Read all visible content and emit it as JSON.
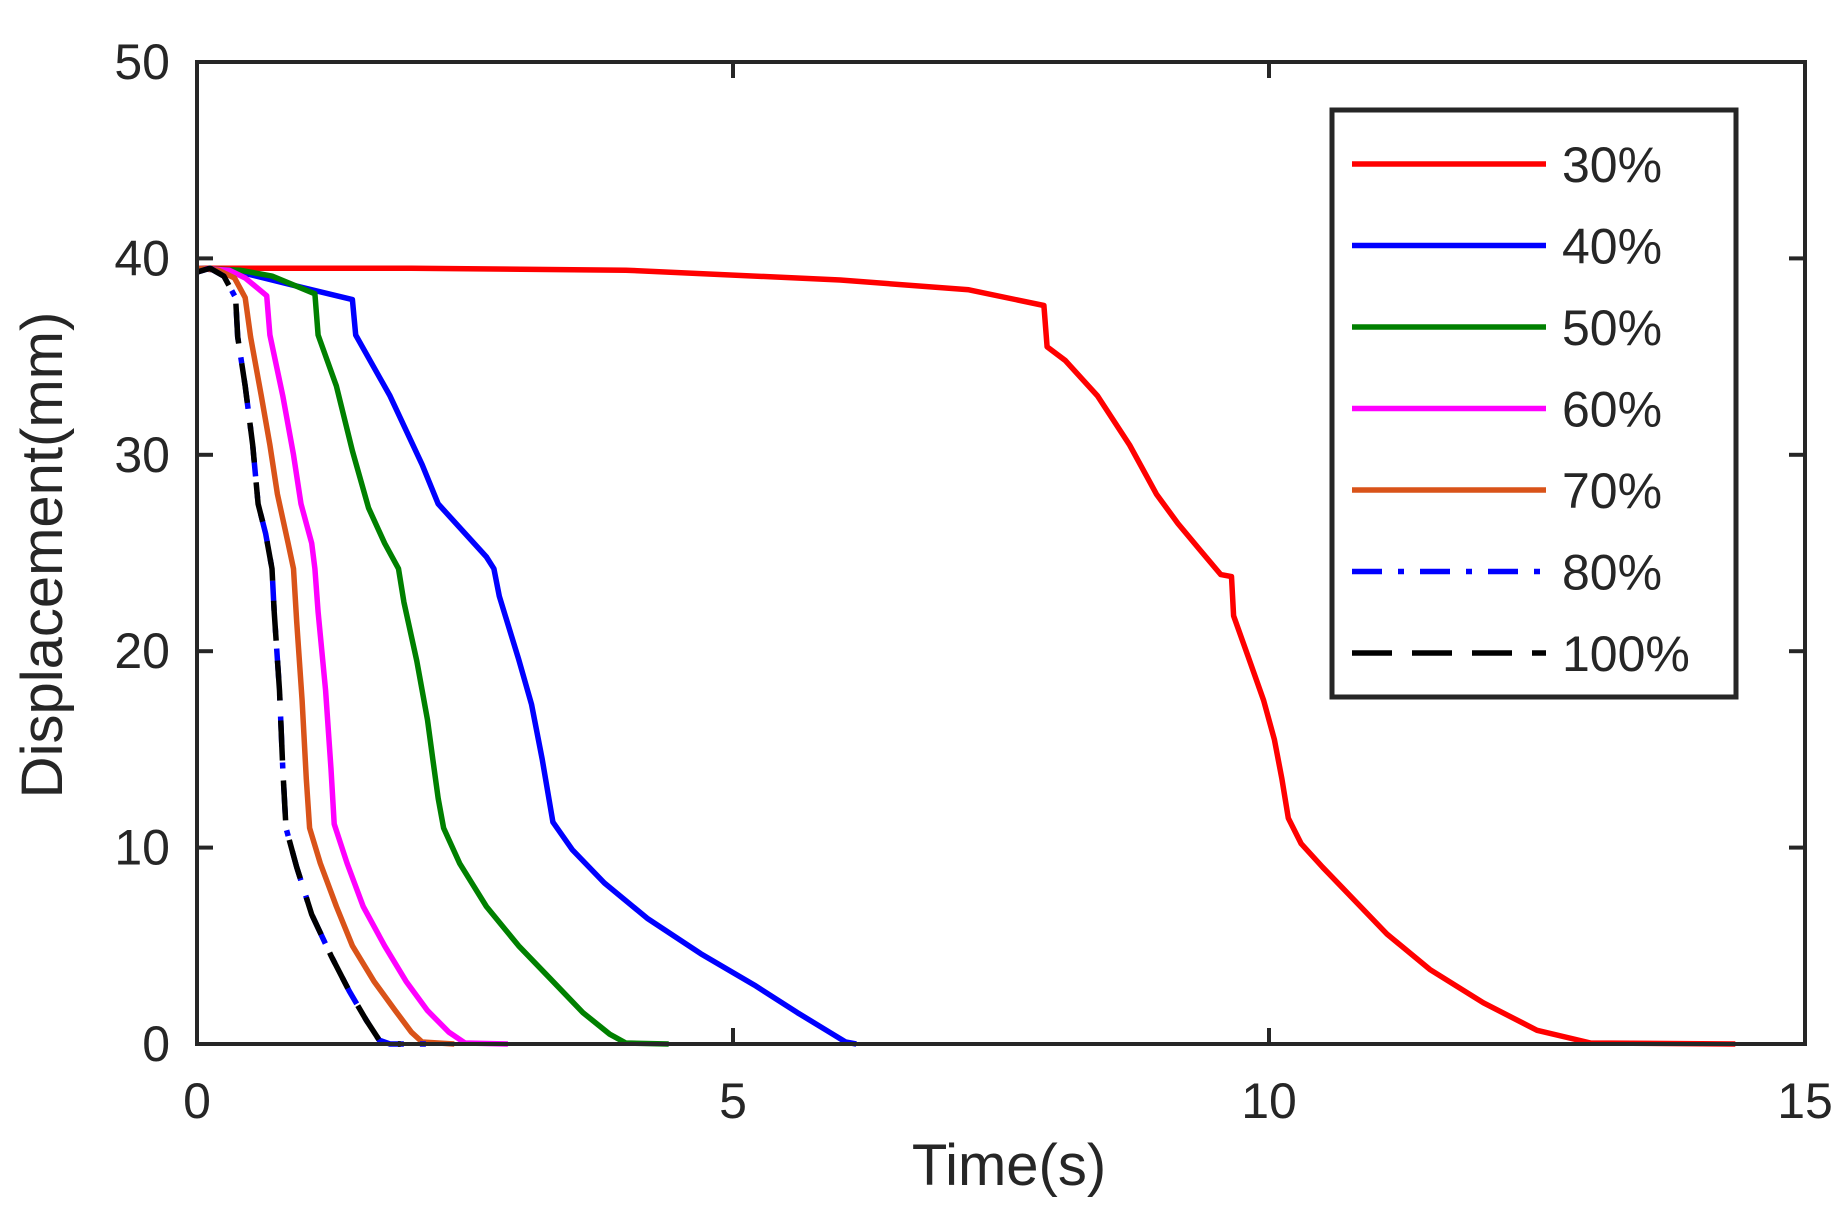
{
  "chart_data": {
    "type": "line",
    "title": "",
    "xlabel": "Time(s)",
    "ylabel": "Displacement(mm)",
    "xlim": [
      0,
      15
    ],
    "ylim": [
      0,
      50
    ],
    "xticks": [
      0,
      5,
      10,
      15
    ],
    "yticks": [
      0,
      10,
      20,
      30,
      40,
      50
    ],
    "grid": false,
    "legend_position": "top-right",
    "series": [
      {
        "name": "30%",
        "color": "#ff0000",
        "style": "solid",
        "points": [
          [
            0,
            39.5
          ],
          [
            2,
            39.5
          ],
          [
            4,
            39.4
          ],
          [
            6,
            38.9
          ],
          [
            7.2,
            38.4
          ],
          [
            7.9,
            37.6
          ],
          [
            7.93,
            35.5
          ],
          [
            8.1,
            34.8
          ],
          [
            8.4,
            33
          ],
          [
            8.7,
            30.5
          ],
          [
            8.95,
            28
          ],
          [
            9.15,
            26.5
          ],
          [
            9.35,
            25.2
          ],
          [
            9.55,
            23.9
          ],
          [
            9.65,
            23.8
          ],
          [
            9.67,
            21.8
          ],
          [
            9.8,
            19.8
          ],
          [
            9.95,
            17.5
          ],
          [
            10.05,
            15.5
          ],
          [
            10.12,
            13.5
          ],
          [
            10.18,
            11.5
          ],
          [
            10.3,
            10.2
          ],
          [
            10.5,
            9
          ],
          [
            10.8,
            7.3
          ],
          [
            11.1,
            5.6
          ],
          [
            11.5,
            3.8
          ],
          [
            12,
            2.1
          ],
          [
            12.5,
            0.7
          ],
          [
            13,
            0.05
          ],
          [
            14.35,
            0
          ]
        ]
      },
      {
        "name": "40%",
        "color": "#0000ff",
        "style": "solid",
        "points": [
          [
            0,
            39.5
          ],
          [
            0.4,
            39.3
          ],
          [
            1.0,
            38.5
          ],
          [
            1.45,
            37.9
          ],
          [
            1.48,
            36.1
          ],
          [
            1.8,
            33
          ],
          [
            2.1,
            29.5
          ],
          [
            2.25,
            27.5
          ],
          [
            2.5,
            26
          ],
          [
            2.7,
            24.8
          ],
          [
            2.77,
            24.2
          ],
          [
            2.82,
            22.8
          ],
          [
            3.0,
            19.6
          ],
          [
            3.12,
            17.3
          ],
          [
            3.22,
            14.5
          ],
          [
            3.32,
            11.3
          ],
          [
            3.5,
            9.9
          ],
          [
            3.8,
            8.2
          ],
          [
            4.2,
            6.4
          ],
          [
            4.7,
            4.6
          ],
          [
            5.2,
            3.0
          ],
          [
            5.6,
            1.6
          ],
          [
            5.9,
            0.6
          ],
          [
            6.05,
            0.1
          ],
          [
            6.15,
            0
          ]
        ]
      },
      {
        "name": "50%",
        "color": "#008000",
        "style": "solid",
        "points": [
          [
            0,
            39.5
          ],
          [
            0.4,
            39.4
          ],
          [
            0.7,
            39.1
          ],
          [
            1.1,
            38.2
          ],
          [
            1.13,
            36.1
          ],
          [
            1.3,
            33.5
          ],
          [
            1.45,
            30.2
          ],
          [
            1.6,
            27.3
          ],
          [
            1.75,
            25.5
          ],
          [
            1.88,
            24.2
          ],
          [
            1.93,
            22.5
          ],
          [
            2.05,
            19.5
          ],
          [
            2.15,
            16.5
          ],
          [
            2.2,
            14.5
          ],
          [
            2.25,
            12.5
          ],
          [
            2.3,
            11
          ],
          [
            2.45,
            9.2
          ],
          [
            2.7,
            7
          ],
          [
            3.0,
            5
          ],
          [
            3.3,
            3.3
          ],
          [
            3.6,
            1.6
          ],
          [
            3.85,
            0.5
          ],
          [
            4.0,
            0.05
          ],
          [
            4.4,
            0
          ]
        ]
      },
      {
        "name": "60%",
        "color": "#ff00ff",
        "style": "solid",
        "points": [
          [
            0,
            39.5
          ],
          [
            0.3,
            39.4
          ],
          [
            0.45,
            39
          ],
          [
            0.65,
            38.1
          ],
          [
            0.68,
            36.1
          ],
          [
            0.8,
            33
          ],
          [
            0.9,
            30
          ],
          [
            0.97,
            27.5
          ],
          [
            1.07,
            25.5
          ],
          [
            1.1,
            24.2
          ],
          [
            1.13,
            22
          ],
          [
            1.2,
            18
          ],
          [
            1.25,
            14
          ],
          [
            1.28,
            11.2
          ],
          [
            1.4,
            9.2
          ],
          [
            1.55,
            7
          ],
          [
            1.75,
            5
          ],
          [
            1.95,
            3.2
          ],
          [
            2.15,
            1.7
          ],
          [
            2.35,
            0.6
          ],
          [
            2.5,
            0.05
          ],
          [
            2.9,
            0
          ]
        ]
      },
      {
        "name": "70%",
        "color": "#d95319",
        "style": "solid",
        "points": [
          [
            0,
            39.5
          ],
          [
            0.2,
            39.4
          ],
          [
            0.35,
            39
          ],
          [
            0.45,
            38
          ],
          [
            0.5,
            36
          ],
          [
            0.6,
            33
          ],
          [
            0.68,
            30.5
          ],
          [
            0.75,
            28
          ],
          [
            0.85,
            25.5
          ],
          [
            0.9,
            24.2
          ],
          [
            0.93,
            21.5
          ],
          [
            0.98,
            17.5
          ],
          [
            1.02,
            13.5
          ],
          [
            1.05,
            11
          ],
          [
            1.15,
            9.2
          ],
          [
            1.3,
            7
          ],
          [
            1.45,
            5
          ],
          [
            1.65,
            3.2
          ],
          [
            1.85,
            1.7
          ],
          [
            2.0,
            0.6
          ],
          [
            2.1,
            0.1
          ],
          [
            2.4,
            0
          ]
        ]
      },
      {
        "name": "80%",
        "color": "#0000ff",
        "style": "dashdot",
        "points": [
          [
            0,
            39.3
          ],
          [
            0.12,
            39.5
          ],
          [
            0.25,
            39.1
          ],
          [
            0.36,
            38
          ],
          [
            0.38,
            36
          ],
          [
            0.45,
            33.5
          ],
          [
            0.52,
            30.5
          ],
          [
            0.57,
            27.5
          ],
          [
            0.64,
            26
          ],
          [
            0.7,
            24.2
          ],
          [
            0.72,
            22
          ],
          [
            0.77,
            18
          ],
          [
            0.8,
            14
          ],
          [
            0.83,
            11
          ],
          [
            0.93,
            9
          ],
          [
            1.07,
            6.6
          ],
          [
            1.25,
            4.5
          ],
          [
            1.42,
            2.7
          ],
          [
            1.58,
            1.2
          ],
          [
            1.7,
            0.2
          ],
          [
            1.8,
            0
          ],
          [
            2.25,
            0
          ]
        ]
      },
      {
        "name": "100%",
        "color": "#000000",
        "style": "dashed",
        "points": [
          [
            0,
            39.3
          ],
          [
            0.12,
            39.5
          ],
          [
            0.25,
            39.1
          ],
          [
            0.36,
            38
          ],
          [
            0.38,
            36
          ],
          [
            0.45,
            33.5
          ],
          [
            0.52,
            30.5
          ],
          [
            0.57,
            27.5
          ],
          [
            0.64,
            26
          ],
          [
            0.7,
            24.2
          ],
          [
            0.72,
            22
          ],
          [
            0.77,
            18
          ],
          [
            0.8,
            14
          ],
          [
            0.83,
            11
          ],
          [
            0.93,
            9
          ],
          [
            1.07,
            6.6
          ],
          [
            1.25,
            4.5
          ],
          [
            1.42,
            2.7
          ],
          [
            1.58,
            1.2
          ],
          [
            1.7,
            0.2
          ],
          [
            1.8,
            0
          ],
          [
            1.9,
            0
          ]
        ]
      }
    ]
  }
}
